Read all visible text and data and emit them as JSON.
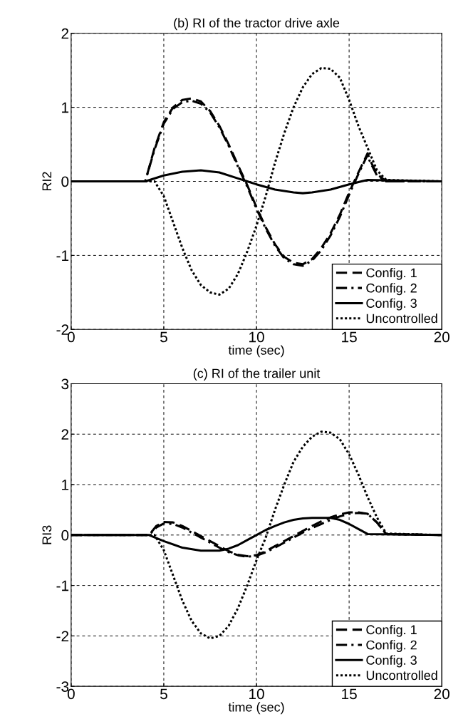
{
  "chart_data": [
    {
      "type": "line",
      "title": "(b) RI of the tractor drive axle",
      "xlabel": "time (sec)",
      "ylabel": "RI2",
      "xlim": [
        0,
        20
      ],
      "ylim": [
        -2,
        2
      ],
      "xticks": [
        0,
        5,
        10,
        15,
        20
      ],
      "yticks": [
        -2,
        -1,
        0,
        1,
        2
      ],
      "grid": true,
      "legend": "bottom right",
      "series": [
        {
          "name": "Config. 1",
          "color": "#000000",
          "line_style": "dashed",
          "x": [
            0,
            4,
            4.5,
            5,
            5.5,
            6,
            6.5,
            7,
            7.5,
            8,
            8.5,
            9,
            9.5,
            10,
            10.5,
            11,
            11.5,
            12,
            12.5,
            13,
            13.5,
            14,
            14.5,
            15,
            15.5,
            16,
            16.1,
            16.5,
            17,
            20
          ],
          "values": [
            0,
            0,
            0.45,
            0.8,
            1.0,
            1.1,
            1.12,
            1.08,
            0.95,
            0.75,
            0.5,
            0.22,
            -0.05,
            -0.35,
            -0.62,
            -0.85,
            -1.02,
            -1.1,
            -1.12,
            -1.05,
            -0.9,
            -0.7,
            -0.45,
            -0.15,
            0.12,
            0.38,
            0.3,
            0.1,
            0,
            0
          ]
        },
        {
          "name": "Config. 2",
          "color": "#000000",
          "line_style": "dashdot",
          "x": [
            0,
            4,
            4.5,
            5,
            5.5,
            6,
            6.5,
            7,
            7.5,
            8,
            8.5,
            9,
            9.5,
            10,
            10.5,
            11,
            11.5,
            12,
            12.5,
            13,
            13.5,
            14,
            14.5,
            15,
            15.5,
            16,
            16.1,
            16.5,
            17,
            20
          ],
          "values": [
            0,
            0,
            0.43,
            0.78,
            0.98,
            1.07,
            1.09,
            1.05,
            0.93,
            0.73,
            0.48,
            0.2,
            -0.07,
            -0.37,
            -0.64,
            -0.87,
            -1.04,
            -1.12,
            -1.14,
            -1.07,
            -0.93,
            -0.73,
            -0.48,
            -0.18,
            0.1,
            0.36,
            0.28,
            0.08,
            0,
            0
          ]
        },
        {
          "name": "Config. 3",
          "color": "#000000",
          "line_style": "solid",
          "x": [
            0,
            4,
            5,
            6,
            7,
            8,
            9,
            9.5,
            10,
            11,
            12,
            12.5,
            13,
            14,
            15,
            16,
            20
          ],
          "values": [
            0,
            0,
            0.08,
            0.13,
            0.15,
            0.12,
            0.04,
            0,
            -0.04,
            -0.11,
            -0.15,
            -0.16,
            -0.15,
            -0.11,
            -0.04,
            0.02,
            0
          ]
        },
        {
          "name": "Uncontrolled",
          "color": "#000000",
          "line_style": "dotted",
          "x": [
            0,
            4.5,
            5,
            5.5,
            6,
            6.5,
            7,
            7.5,
            8,
            8.5,
            9,
            9.5,
            10,
            10.5,
            11,
            11.5,
            12,
            12.5,
            13,
            13.5,
            14,
            14.5,
            15,
            15.5,
            16,
            16.5,
            17,
            20
          ],
          "values": [
            0,
            0,
            -0.2,
            -0.55,
            -0.9,
            -1.2,
            -1.4,
            -1.5,
            -1.53,
            -1.45,
            -1.25,
            -0.95,
            -0.6,
            -0.2,
            0.25,
            0.65,
            1.0,
            1.27,
            1.45,
            1.53,
            1.52,
            1.4,
            1.1,
            0.75,
            0.45,
            0.15,
            0.02,
            0
          ]
        }
      ]
    },
    {
      "type": "line",
      "title": "(c) RI of the trailer unit",
      "xlabel": "time (sec)",
      "ylabel": "RI3",
      "xlim": [
        0,
        20
      ],
      "ylim": [
        -3,
        3
      ],
      "xticks": [
        0,
        5,
        10,
        15,
        20
      ],
      "yticks": [
        -3,
        -2,
        -1,
        0,
        1,
        2,
        3
      ],
      "grid": true,
      "legend": "bottom right",
      "series": [
        {
          "name": "Config. 1",
          "color": "#000000",
          "line_style": "dashed",
          "x": [
            0,
            4.2,
            4.6,
            5,
            5.5,
            6,
            6.5,
            7,
            7.5,
            8,
            8.5,
            9,
            9.5,
            10,
            10.5,
            11,
            11.5,
            12,
            12.5,
            13,
            13.5,
            14,
            14.5,
            15,
            15.5,
            16,
            16.5,
            17,
            20
          ],
          "values": [
            0,
            0,
            0.18,
            0.26,
            0.25,
            0.18,
            0.08,
            -0.02,
            -0.12,
            -0.22,
            -0.32,
            -0.39,
            -0.42,
            -0.4,
            -0.32,
            -0.22,
            -0.12,
            -0.02,
            0.08,
            0.18,
            0.27,
            0.35,
            0.41,
            0.45,
            0.45,
            0.42,
            0.25,
            0.02,
            0
          ]
        },
        {
          "name": "Config. 2",
          "color": "#000000",
          "line_style": "dashdot",
          "x": [
            0,
            4.2,
            4.6,
            5,
            5.5,
            6,
            6.5,
            7,
            7.5,
            8,
            8.5,
            9,
            9.5,
            10,
            10.5,
            11,
            11.5,
            12,
            12.5,
            13,
            13.5,
            14,
            14.5,
            15,
            15.5,
            16,
            16.5,
            17,
            20
          ],
          "values": [
            0,
            0,
            0.15,
            0.23,
            0.22,
            0.15,
            0.05,
            -0.05,
            -0.15,
            -0.25,
            -0.34,
            -0.4,
            -0.43,
            -0.41,
            -0.34,
            -0.25,
            -0.15,
            -0.05,
            0.05,
            0.14,
            0.22,
            0.3,
            0.37,
            0.42,
            0.44,
            0.42,
            0.25,
            0.02,
            0
          ]
        },
        {
          "name": "Config. 3",
          "color": "#000000",
          "line_style": "solid",
          "x": [
            0,
            4.2,
            5,
            6,
            7,
            8,
            8.5,
            9,
            9.5,
            10,
            10.5,
            11,
            11.5,
            12,
            12.5,
            13,
            14,
            14.5,
            15,
            15.5,
            16,
            20
          ],
          "values": [
            0,
            0,
            -0.12,
            -0.25,
            -0.31,
            -0.31,
            -0.27,
            -0.2,
            -0.1,
            0,
            0.1,
            0.18,
            0.25,
            0.3,
            0.33,
            0.34,
            0.34,
            0.3,
            0.22,
            0.12,
            0.02,
            0
          ]
        },
        {
          "name": "Uncontrolled",
          "color": "#000000",
          "line_style": "dotted",
          "x": [
            0,
            4.5,
            5,
            5.5,
            6,
            6.5,
            7,
            7.5,
            8,
            8.5,
            9,
            9.5,
            10,
            10.5,
            11,
            11.5,
            12,
            12.5,
            13,
            13.5,
            14,
            14.5,
            15,
            15.5,
            16,
            16.5,
            17,
            20
          ],
          "values": [
            0,
            0,
            -0.3,
            -0.8,
            -1.3,
            -1.7,
            -1.95,
            -2.05,
            -2.0,
            -1.8,
            -1.45,
            -1.0,
            -0.5,
            -0.05,
            0.5,
            1.0,
            1.45,
            1.75,
            1.95,
            2.05,
            2.03,
            1.9,
            1.6,
            1.2,
            0.75,
            0.35,
            0.03,
            0
          ]
        }
      ]
    }
  ]
}
